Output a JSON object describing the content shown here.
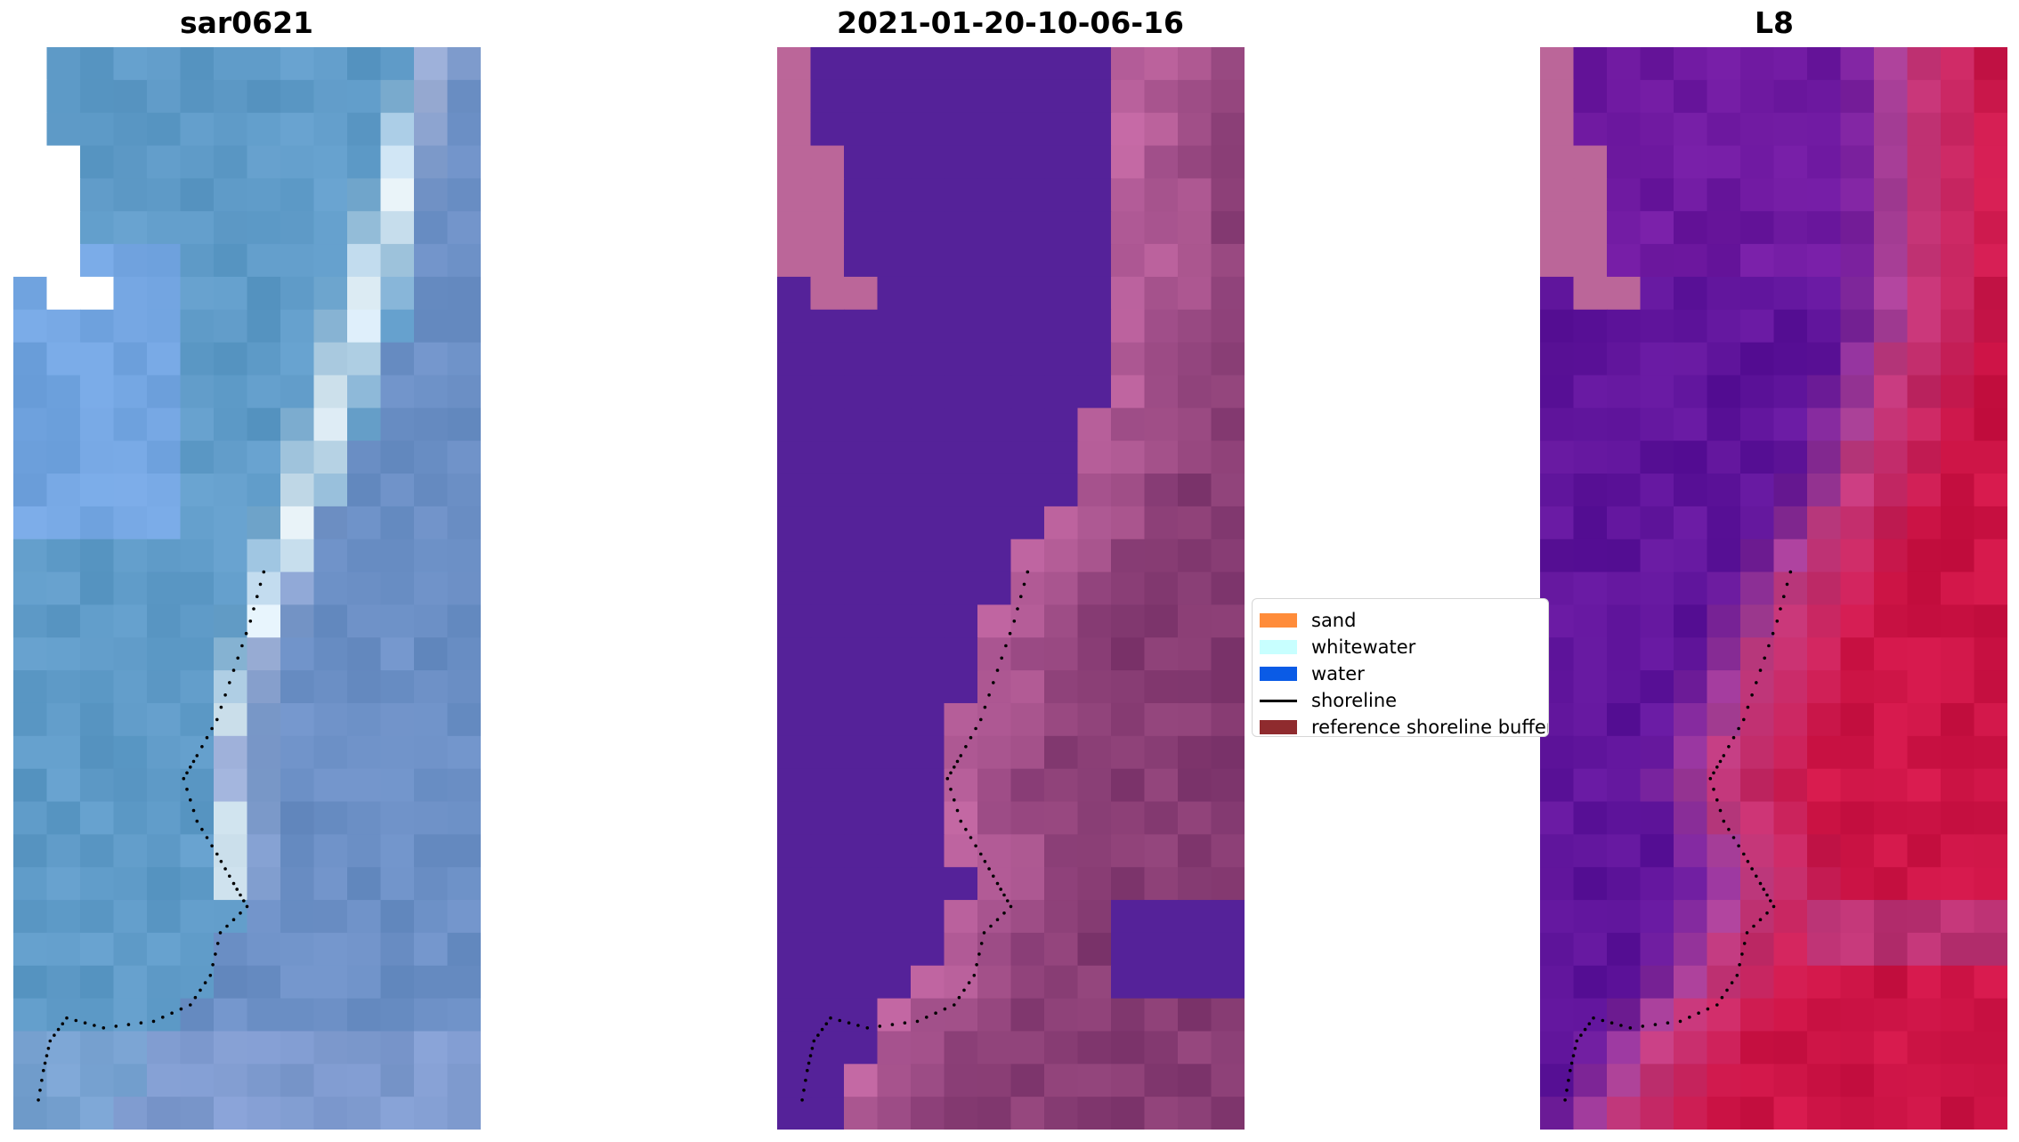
{
  "panels": [
    {
      "title": "sar0621",
      "palette": "rgb"
    },
    {
      "title": "2021-01-20-10-06-16",
      "palette": "classified"
    },
    {
      "title": "L8",
      "palette": "index"
    }
  ],
  "legend": {
    "items": [
      {
        "label": "sand",
        "color": "#ff8c3a",
        "kind": "patch"
      },
      {
        "label": "whitewater",
        "color": "#c8ffff",
        "kind": "patch"
      },
      {
        "label": "water",
        "color": "#0a5be6",
        "kind": "patch"
      },
      {
        "label": "shoreline",
        "color": "#000000",
        "kind": "line"
      },
      {
        "label": "reference shoreline buffer",
        "color": "#8f2b2e",
        "kind": "patch"
      }
    ]
  },
  "colors": {
    "nodata": "#ffffff",
    "masked_pink": "#bb6699",
    "water_purple": "#552299",
    "shoreline_dots": "#000000"
  }
}
